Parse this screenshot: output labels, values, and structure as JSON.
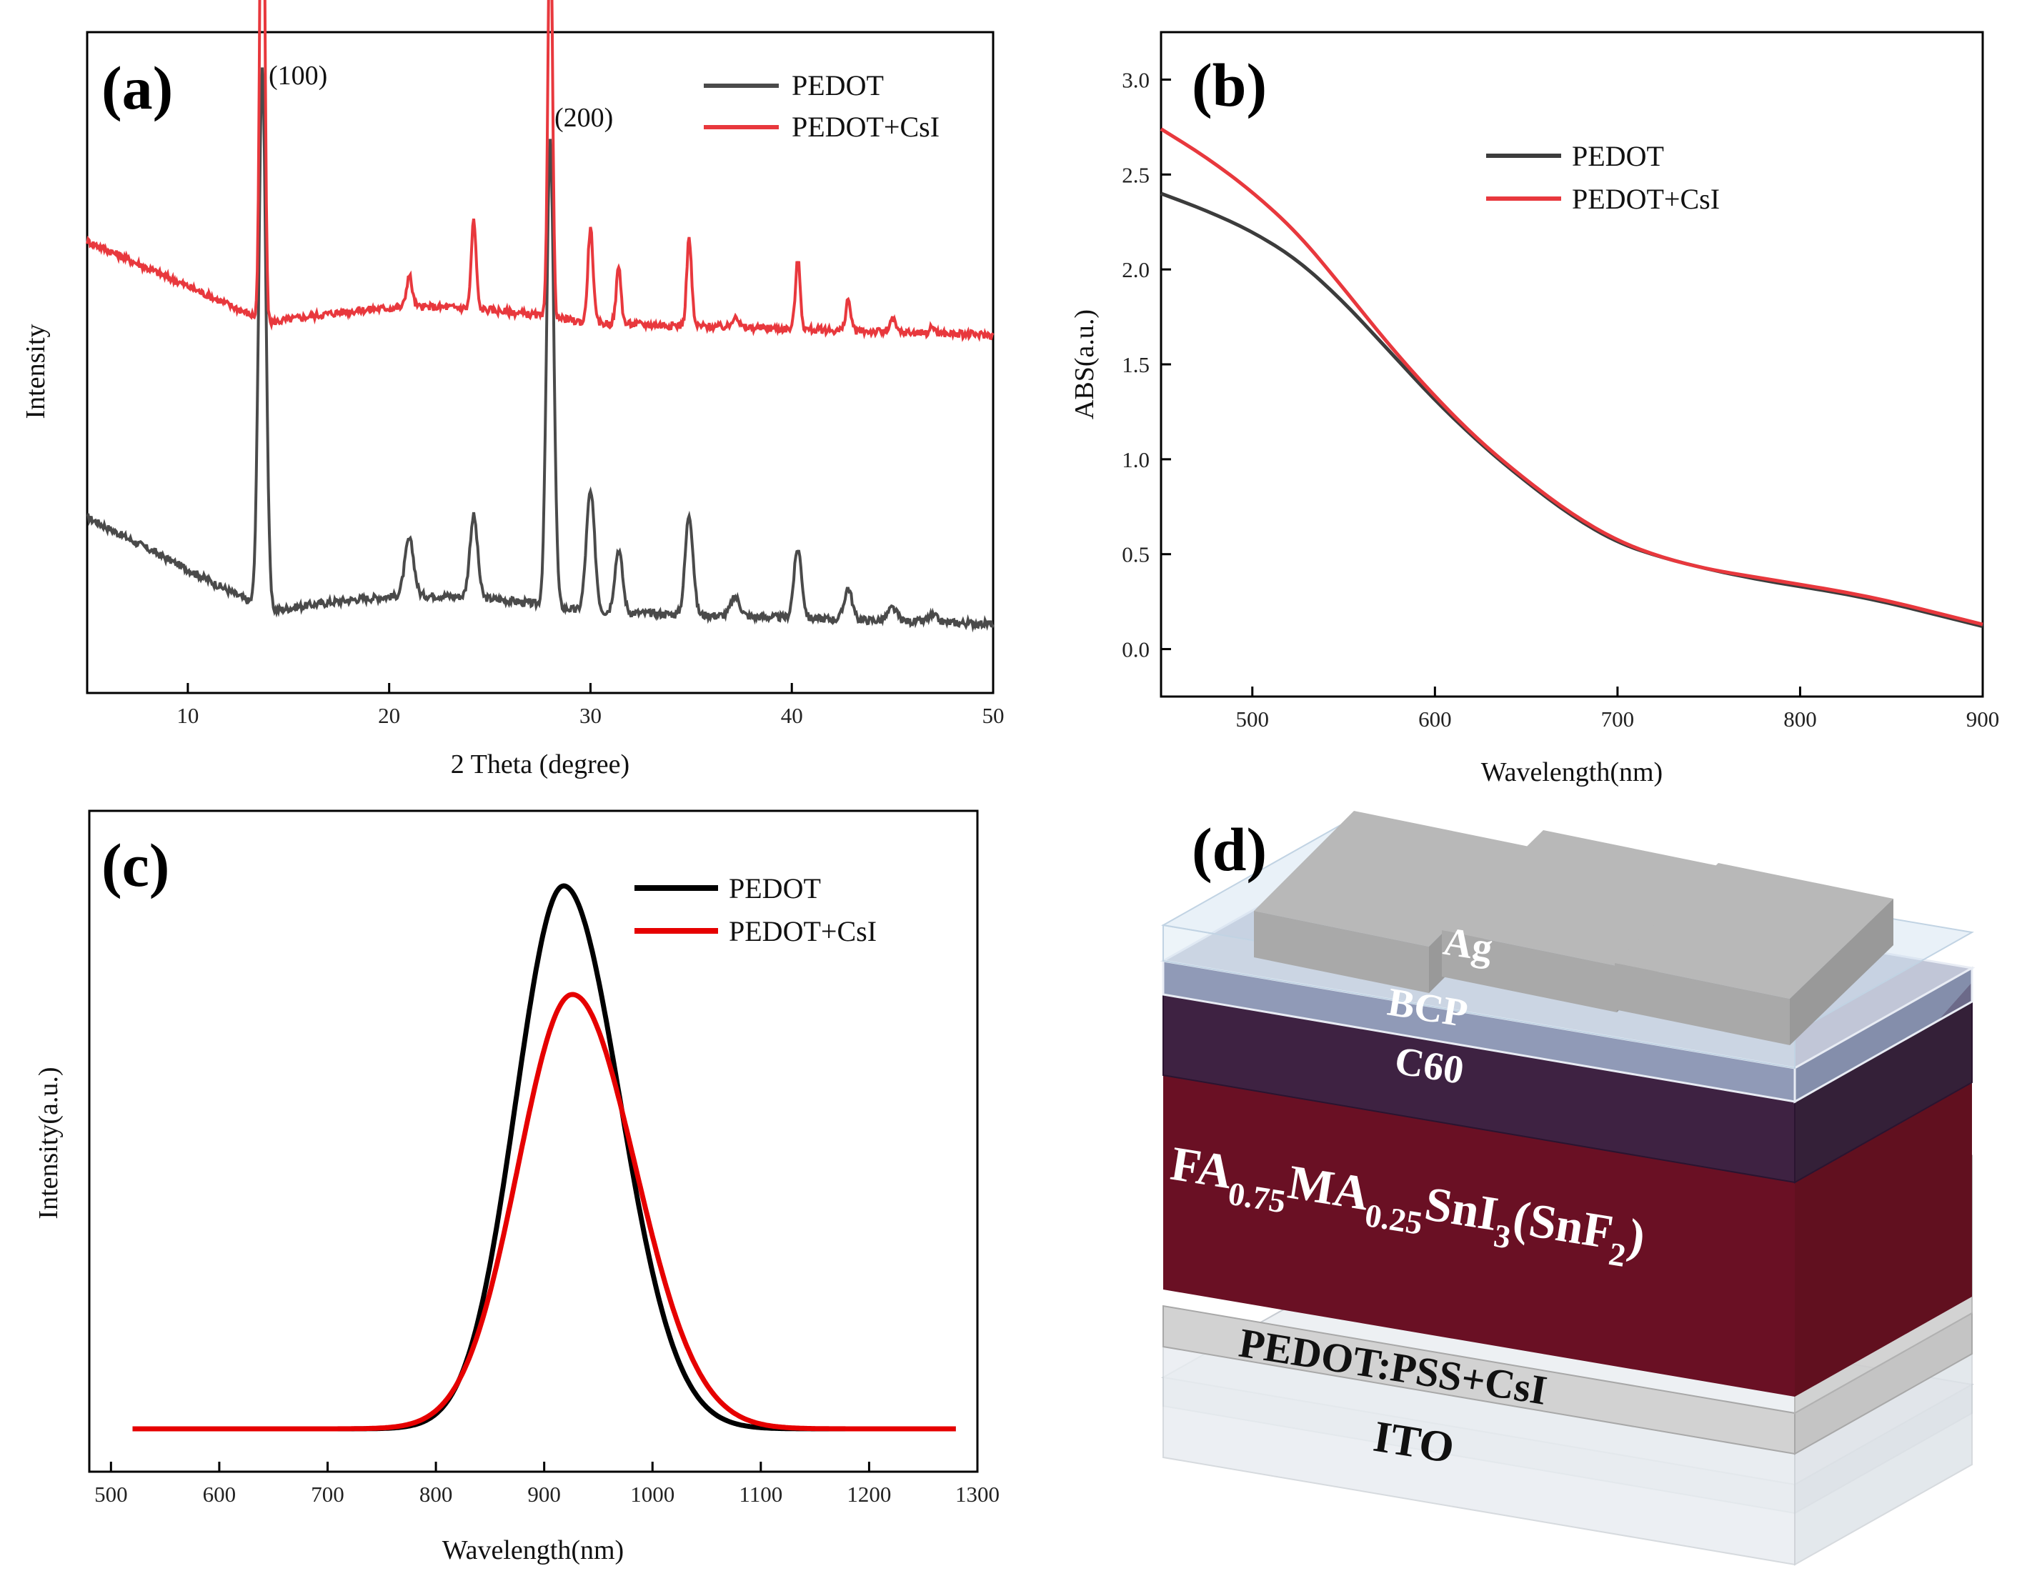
{
  "chart_data": [
    {
      "panel": "(a)",
      "type": "line",
      "title": "",
      "xlabel": "2 Theta (degree)",
      "ylabel": "Intensity",
      "xlim": [
        5,
        50
      ],
      "xticks": [
        10,
        20,
        30,
        40,
        50
      ],
      "peaks": [
        13.7,
        21.0,
        24.2,
        28.0,
        30.0,
        31.4,
        34.9,
        37.2,
        40.3,
        42.8,
        45.0,
        47.0
      ],
      "annotations": [
        {
          "text": "(100)",
          "x": 13.7
        },
        {
          "text": "(200)",
          "x": 28.0
        }
      ],
      "series": [
        {
          "name": "PEDOT",
          "color": "#4a4a4a",
          "baseline_left": 0.28,
          "baseline_mid": 0.13,
          "baseline_right": 0.11,
          "peak_heights": [
            0.86,
            0.09,
            0.13,
            0.74,
            0.19,
            0.1,
            0.16,
            0.03,
            0.11,
            0.05,
            0.02,
            0.01
          ]
        },
        {
          "name": "PEDOT+CsI",
          "color": "#e8383d",
          "baseline_left": 0.72,
          "baseline_mid": 0.59,
          "baseline_right": 0.57,
          "peak_heights": [
            1.0,
            0.05,
            0.14,
            0.69,
            0.15,
            0.09,
            0.14,
            0.02,
            0.11,
            0.05,
            0.02,
            0.01
          ]
        }
      ],
      "legend": "top-right"
    },
    {
      "panel": "(b)",
      "type": "line",
      "title": "",
      "xlabel": "Wavelength(nm)",
      "ylabel": "ABS(a.u.)",
      "xlim": [
        450,
        900
      ],
      "ylim": [
        -0.25,
        3.25
      ],
      "xticks": [
        500,
        600,
        700,
        800,
        900
      ],
      "yticks": [
        "0.0",
        "0.5",
        "1.0",
        "1.5",
        "2.0",
        "2.5",
        "3.0"
      ],
      "x": [
        450,
        475,
        500,
        525,
        550,
        575,
        600,
        625,
        650,
        675,
        700,
        725,
        750,
        775,
        800,
        825,
        850,
        875,
        900
      ],
      "series": [
        {
          "name": "PEDOT",
          "color": "#3c3c3c",
          "values": [
            2.4,
            2.31,
            2.2,
            2.05,
            1.83,
            1.57,
            1.31,
            1.08,
            0.88,
            0.7,
            0.56,
            0.48,
            0.42,
            0.37,
            0.33,
            0.29,
            0.24,
            0.18,
            0.12
          ]
        },
        {
          "name": "PEDOT+CsI",
          "color": "#e8383d",
          "values": [
            2.74,
            2.59,
            2.41,
            2.19,
            1.9,
            1.6,
            1.33,
            1.09,
            0.89,
            0.71,
            0.57,
            0.48,
            0.42,
            0.38,
            0.34,
            0.3,
            0.25,
            0.19,
            0.13
          ]
        }
      ],
      "legend": "top-right"
    },
    {
      "panel": "(c)",
      "type": "line",
      "title": "",
      "xlabel": "Wavelength(nm)",
      "ylabel": "Intensity(a.u.)",
      "xlim": [
        480,
        1300
      ],
      "xticks": [
        500,
        600,
        700,
        800,
        900,
        1000,
        1100,
        1200,
        1300
      ],
      "x_range": [
        520,
        1280
      ],
      "series": [
        {
          "name": "PEDOT",
          "color": "#000000",
          "center": 918,
          "amplitude": 1.0,
          "sigma_left": 44,
          "sigma_right": 52
        },
        {
          "name": "PEDOT+CsI",
          "color": "#e60000",
          "center": 926,
          "amplitude": 0.8,
          "sigma_left": 50,
          "sigma_right": 58
        }
      ],
      "legend": "top-right"
    }
  ],
  "panel_d": {
    "label": "(d)",
    "layers": {
      "ag": "Ag",
      "bcp": "BCP",
      "c60": "C60",
      "perovskite_main": "FA",
      "perovskite_sub1": "0.75",
      "perovskite_mid": "MA",
      "perovskite_sub2": "0.25",
      "perovskite_tail": "SnI",
      "perovskite_sub3": "3",
      "perovskite_paren": "(SnF",
      "perovskite_sub4": "2",
      "perovskite_close": ")",
      "pedot": "PEDOT:PSS+CsI",
      "ito": "ITO"
    },
    "colors": {
      "perovskite": "#6a1024",
      "c60": "#3e2242",
      "bcp": "#7d88aa",
      "ag": "#a9a9a9",
      "pedot": "#d2d2d2",
      "ito": "#e6eaee"
    }
  }
}
